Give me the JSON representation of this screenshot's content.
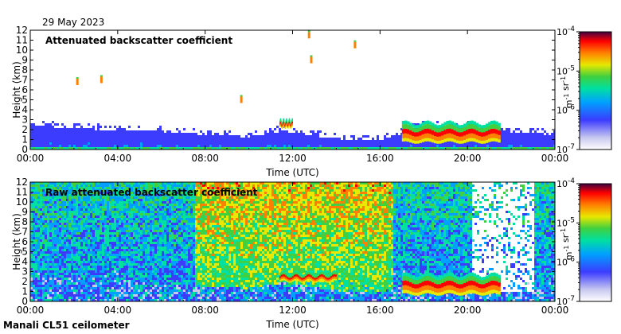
{
  "date": "29 May 2023",
  "footer": "Manali CL51 ceilometer",
  "chart_data": [
    {
      "type": "heatmap",
      "title": "Attenuated backscatter coefficient",
      "xlabel": "Time (UTC)",
      "ylabel": "Height (km)",
      "x_ticks": [
        "00:00",
        "04:00",
        "08:00",
        "12:00",
        "16:00",
        "20:00",
        "00:00"
      ],
      "x_range_hours": [
        0,
        24
      ],
      "y_ticks": [
        0,
        1,
        2,
        3,
        4,
        5,
        6,
        7,
        8,
        9,
        10,
        11,
        12
      ],
      "ylim": [
        0,
        12
      ],
      "colorbar": {
        "scale": "log",
        "label": "m-1 sr-1",
        "ticks": [
          "10-7",
          "10-6",
          "10-5",
          "10-4"
        ],
        "range": [
          1e-07,
          0.0001
        ]
      },
      "features": {
        "boundary_layer_top_km": [
          [
            0,
            2.5
          ],
          [
            2,
            2.3
          ],
          [
            4,
            2.0
          ],
          [
            6,
            1.9
          ],
          [
            8,
            1.6
          ],
          [
            10,
            1.4
          ],
          [
            11.5,
            2.0
          ],
          [
            12,
            1.8
          ],
          [
            14,
            1.2
          ],
          [
            16,
            1.0
          ],
          [
            17,
            1.8
          ],
          [
            18,
            2.6
          ],
          [
            20,
            2.5
          ],
          [
            22,
            1.9
          ],
          [
            24,
            1.6
          ]
        ],
        "cloud_layers": [
          {
            "start_h": 11.4,
            "end_h": 12.0,
            "base_km": 2.2,
            "top_km": 3.0
          },
          {
            "start_h": 17.0,
            "end_h": 21.5,
            "base_km": 0.7,
            "top_km": 2.9
          }
        ],
        "isolated_returns": [
          {
            "time_h": 2.1,
            "height_km": 6.8
          },
          {
            "time_h": 3.2,
            "height_km": 7.0
          },
          {
            "time_h": 9.6,
            "height_km": 5.0
          },
          {
            "time_h": 12.7,
            "height_km": 11.5
          },
          {
            "time_h": 12.8,
            "height_km": 9.0
          },
          {
            "time_h": 14.8,
            "height_km": 10.5
          }
        ]
      }
    },
    {
      "type": "heatmap",
      "title": "Raw attenuated backscatter coefficient",
      "xlabel": "Time (UTC)",
      "ylabel": "Height (km)",
      "x_ticks": [
        "00:00",
        "04:00",
        "08:00",
        "12:00",
        "16:00",
        "20:00",
        "00:00"
      ],
      "x_range_hours": [
        0,
        24
      ],
      "y_ticks": [
        0,
        1,
        2,
        3,
        4,
        5,
        6,
        7,
        8,
        9,
        10,
        11,
        12
      ],
      "ylim": [
        0,
        12
      ],
      "colorbar": {
        "scale": "log",
        "label": "m-1 sr-1",
        "ticks": [
          "10-7",
          "10-6",
          "10-5",
          "10-4"
        ],
        "range": [
          1e-07,
          0.0001
        ]
      },
      "features": {
        "noisy_high_signal": {
          "start_h": 7.5,
          "end_h": 16.5
        },
        "cloud_layers": [
          {
            "start_h": 11.4,
            "end_h": 14.0,
            "base_km": 2.0,
            "top_km": 3.0
          },
          {
            "start_h": 17.0,
            "end_h": 21.5,
            "base_km": 0.7,
            "top_km": 2.9
          }
        ],
        "missing_data": {
          "start_h": 20.2,
          "end_h": 23.0
        }
      }
    }
  ]
}
